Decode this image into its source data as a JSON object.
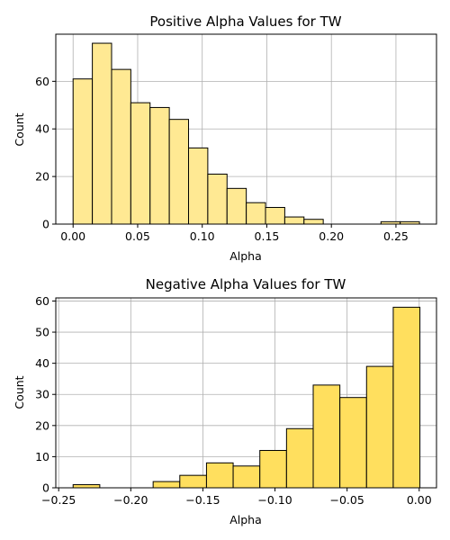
{
  "chart_data": [
    {
      "type": "bar",
      "title": "Positive Alpha Values for TW",
      "xlabel": "Alpha",
      "ylabel": "Count",
      "xlim": [
        -0.0134,
        0.2814
      ],
      "ylim": [
        0,
        79.8
      ],
      "xticks": [
        0.0,
        0.05,
        0.1,
        0.15,
        0.2,
        0.25
      ],
      "xtick_labels": [
        "0.00",
        "0.05",
        "0.10",
        "0.15",
        "0.20",
        "0.25"
      ],
      "yticks": [
        0,
        20,
        40,
        60
      ],
      "ytick_labels": [
        "0",
        "20",
        "40",
        "60"
      ],
      "grid": true,
      "bar_color": "#ffe993",
      "edge_color": "#000000",
      "bins": [
        {
          "x0": 0.0,
          "x1": 0.0149,
          "count": 61
        },
        {
          "x0": 0.0149,
          "x1": 0.0298,
          "count": 76
        },
        {
          "x0": 0.0298,
          "x1": 0.0447,
          "count": 65
        },
        {
          "x0": 0.0447,
          "x1": 0.0596,
          "count": 51
        },
        {
          "x0": 0.0596,
          "x1": 0.0745,
          "count": 49
        },
        {
          "x0": 0.0745,
          "x1": 0.0894,
          "count": 44
        },
        {
          "x0": 0.0894,
          "x1": 0.1043,
          "count": 32
        },
        {
          "x0": 0.1043,
          "x1": 0.1192,
          "count": 21
        },
        {
          "x0": 0.1192,
          "x1": 0.1341,
          "count": 15
        },
        {
          "x0": 0.1341,
          "x1": 0.149,
          "count": 9
        },
        {
          "x0": 0.149,
          "x1": 0.1639,
          "count": 7
        },
        {
          "x0": 0.1639,
          "x1": 0.1788,
          "count": 3
        },
        {
          "x0": 0.1788,
          "x1": 0.1937,
          "count": 2
        },
        {
          "x0": 0.1937,
          "x1": 0.2086,
          "count": 0
        },
        {
          "x0": 0.2086,
          "x1": 0.2235,
          "count": 0
        },
        {
          "x0": 0.2235,
          "x1": 0.2384,
          "count": 0
        },
        {
          "x0": 0.2384,
          "x1": 0.2533,
          "count": 1
        },
        {
          "x0": 0.2533,
          "x1": 0.2682,
          "count": 1
        }
      ]
    },
    {
      "type": "bar",
      "title": "Negative Alpha Values for TW",
      "xlabel": "Alpha",
      "ylabel": "Count",
      "xlim": [
        -0.252,
        0.012
      ],
      "ylim": [
        0,
        61
      ],
      "xticks": [
        -0.25,
        -0.2,
        -0.15,
        -0.1,
        -0.05,
        0.0
      ],
      "xtick_labels": [
        "−0.25",
        "−0.20",
        "−0.15",
        "−0.10",
        "−0.05",
        "0.00"
      ],
      "yticks": [
        0,
        10,
        20,
        30,
        40,
        50,
        60
      ],
      "ytick_labels": [
        "0",
        "10",
        "20",
        "30",
        "40",
        "50",
        "60"
      ],
      "grid": true,
      "bar_color": "#ffdf5e",
      "edge_color": "#000000",
      "bins": [
        {
          "x0": -0.24,
          "x1": -0.2215,
          "count": 1
        },
        {
          "x0": -0.2215,
          "x1": -0.203,
          "count": 0
        },
        {
          "x0": -0.203,
          "x1": -0.1845,
          "count": 0
        },
        {
          "x0": -0.1845,
          "x1": -0.166,
          "count": 2
        },
        {
          "x0": -0.166,
          "x1": -0.1475,
          "count": 4
        },
        {
          "x0": -0.1475,
          "x1": -0.129,
          "count": 8
        },
        {
          "x0": -0.129,
          "x1": -0.1105,
          "count": 7
        },
        {
          "x0": -0.1105,
          "x1": -0.092,
          "count": 12
        },
        {
          "x0": -0.092,
          "x1": -0.0735,
          "count": 19
        },
        {
          "x0": -0.0735,
          "x1": -0.055,
          "count": 33
        },
        {
          "x0": -0.055,
          "x1": -0.0365,
          "count": 29
        },
        {
          "x0": -0.0365,
          "x1": -0.018,
          "count": 39
        },
        {
          "x0": -0.018,
          "x1": 0.0005,
          "count": 58
        }
      ]
    }
  ]
}
